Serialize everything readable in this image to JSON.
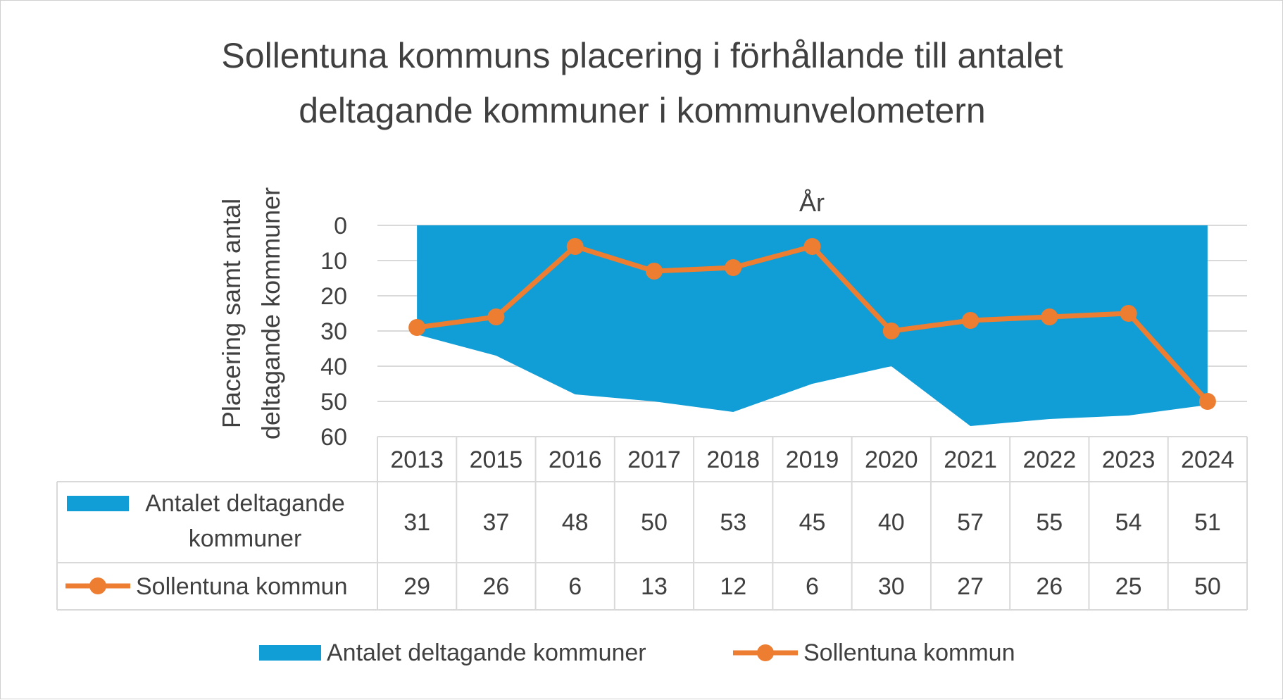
{
  "chart_data": {
    "type": "area",
    "title_lines": [
      "Sollentuna kommuns placering i förhållande till antalet",
      "deltagande kommuner i kommunvelometern"
    ],
    "xlabel": "År",
    "ylabel_lines": [
      "Placering samt antal",
      "deltagande kommuner"
    ],
    "y_reversed": true,
    "ylim": [
      0,
      60
    ],
    "yticks": [
      0,
      10,
      20,
      30,
      40,
      50,
      60
    ],
    "categories": [
      "2013",
      "2015",
      "2016",
      "2017",
      "2018",
      "2019",
      "2020",
      "2021",
      "2022",
      "2023",
      "2024"
    ],
    "grid": true,
    "legend_position": "bottom",
    "data_table": true,
    "series": [
      {
        "name": "Antalet deltagande kommuner",
        "type": "area",
        "color": "#119dd6",
        "values": [
          31,
          37,
          48,
          50,
          53,
          45,
          40,
          57,
          55,
          54,
          51
        ],
        "table_label_lines": [
          "Antalet deltagande",
          "kommuner"
        ]
      },
      {
        "name": "Sollentuna kommun",
        "type": "line",
        "color": "#ed7d31",
        "values": [
          29,
          26,
          6,
          13,
          12,
          6,
          30,
          27,
          26,
          25,
          50
        ],
        "table_label_lines": [
          "Sollentuna kommun"
        ]
      }
    ]
  }
}
